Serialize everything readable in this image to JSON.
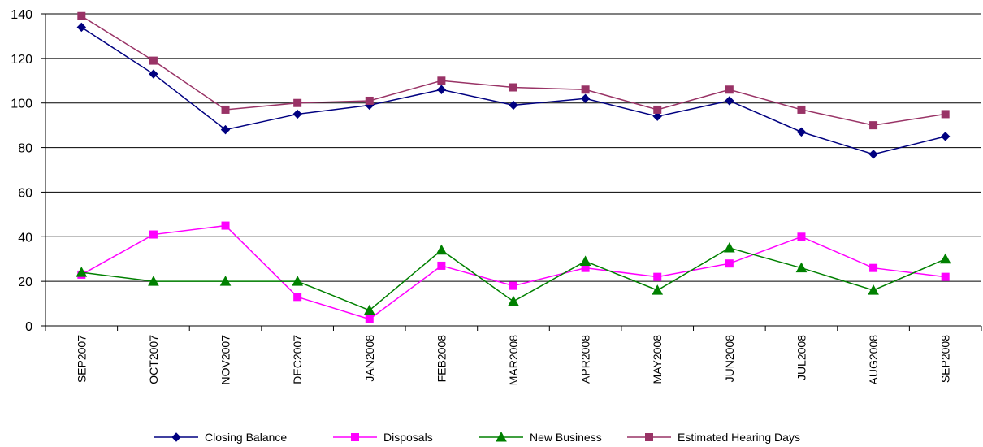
{
  "chart_data": {
    "type": "line",
    "title": "",
    "xlabel": "",
    "ylabel": "",
    "ylim": [
      0,
      140
    ],
    "yticks": [
      0,
      20,
      40,
      60,
      80,
      100,
      120,
      140
    ],
    "grid": "horizontal",
    "legend_position": "bottom",
    "categories": [
      "SEP2007",
      "OCT2007",
      "NOV2007",
      "DEC2007",
      "JAN2008",
      "FEB2008",
      "MAR2008",
      "APR2008",
      "MAY2008",
      "JUN2008",
      "JUL2008",
      "AUG2008",
      "SEP2008"
    ],
    "series": [
      {
        "name": "Closing Balance",
        "color": "#000080",
        "marker": "diamond",
        "values": [
          134,
          113,
          88,
          95,
          99,
          106,
          99,
          102,
          94,
          101,
          87,
          77,
          85
        ]
      },
      {
        "name": "Disposals",
        "color": "#FF00FF",
        "marker": "square",
        "values": [
          23,
          41,
          45,
          13,
          3,
          27,
          18,
          26,
          22,
          28,
          40,
          26,
          22
        ]
      },
      {
        "name": "New Business",
        "color": "#008000",
        "marker": "triangle",
        "values": [
          24,
          20,
          20,
          20,
          7,
          34,
          11,
          29,
          16,
          35,
          26,
          16,
          30
        ]
      },
      {
        "name": "Estimated Hearing Days",
        "color": "#993366",
        "marker": "square",
        "values": [
          139,
          119,
          97,
          100,
          101,
          110,
          107,
          106,
          97,
          106,
          97,
          90,
          95
        ]
      }
    ]
  }
}
